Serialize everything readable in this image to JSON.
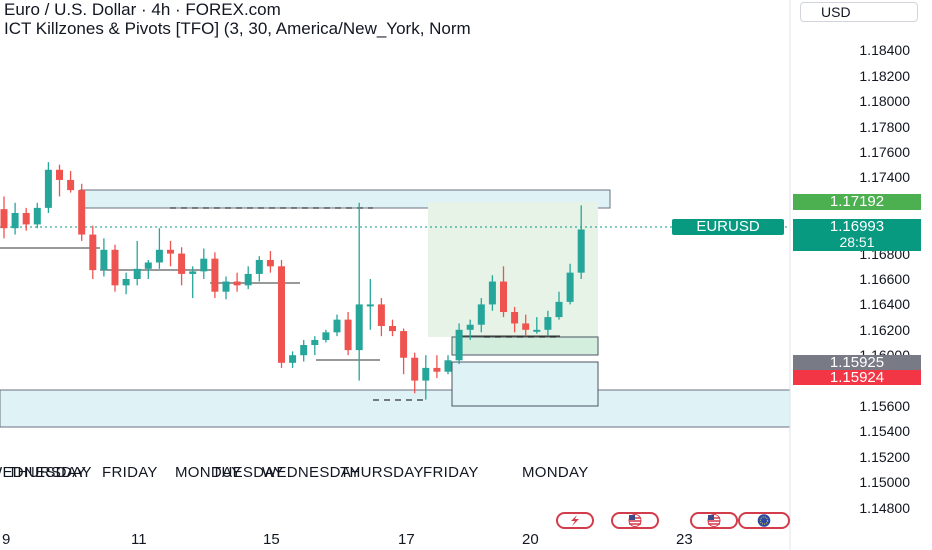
{
  "header": {
    "symbol_title": "Euro / U.S. Dollar · 4h · FOREX.com",
    "indicator": "ICT Killzones & Pivots [TFO] (3, 30, America/New_York, Norm"
  },
  "price_axis": {
    "currency": "USD",
    "ticks": [
      "1.18400",
      "1.18200",
      "1.18000",
      "1.17800",
      "1.17600",
      "1.17400",
      "1.16800",
      "1.16600",
      "1.16400",
      "1.16200",
      "1.16000",
      "1.15600",
      "1.15400",
      "1.15200",
      "1.15000",
      "1.14800"
    ]
  },
  "time_axis": {
    "ticks": [
      "9",
      "11",
      "15",
      "17",
      "20",
      "23"
    ]
  },
  "labels": {
    "high_price": "1.17192",
    "symbol_tag": "EURUSD",
    "last_price": "1.16993",
    "countdown": "28:51",
    "level_a": "1.15925",
    "level_b": "1.15924"
  },
  "colors": {
    "up": "#26a69a",
    "down": "#ef5350",
    "zone_fill": "#dff3f6",
    "range_fill": "#e6f3e6",
    "high_label": "#4caf50",
    "price_label": "#089981",
    "level_a": "#787b86",
    "level_b": "#f23645"
  },
  "day_labels": [
    "WEDNESDAY",
    "THURSDAY",
    "FRIDAY",
    "MONDAY",
    "TUESDAY",
    "WEDNESDAY",
    "THURSDAY",
    "FRIDAY",
    "MONDAY"
  ],
  "events": [
    "flash-event-icon",
    "us-flag-event-icon",
    "us-flag-event-icon",
    "eu-flag-event-icon"
  ],
  "chart_data": {
    "type": "candlestick",
    "symbol": "EURUSD",
    "timeframe": "4h",
    "ylim": [
      1.147,
      1.186
    ],
    "candles": [
      {
        "o": 1.1715,
        "h": 1.1725,
        "l": 1.1692,
        "c": 1.17
      },
      {
        "o": 1.17,
        "h": 1.172,
        "l": 1.1695,
        "c": 1.1712
      },
      {
        "o": 1.1712,
        "h": 1.1716,
        "l": 1.1698,
        "c": 1.1703
      },
      {
        "o": 1.1703,
        "h": 1.172,
        "l": 1.17,
        "c": 1.1716
      },
      {
        "o": 1.1716,
        "h": 1.1752,
        "l": 1.1712,
        "c": 1.1746
      },
      {
        "o": 1.1746,
        "h": 1.175,
        "l": 1.1725,
        "c": 1.1738
      },
      {
        "o": 1.1738,
        "h": 1.1745,
        "l": 1.1728,
        "c": 1.173
      },
      {
        "o": 1.173,
        "h": 1.1735,
        "l": 1.169,
        "c": 1.1695
      },
      {
        "o": 1.1695,
        "h": 1.1702,
        "l": 1.166,
        "c": 1.1667
      },
      {
        "o": 1.1667,
        "h": 1.1692,
        "l": 1.1662,
        "c": 1.1683
      },
      {
        "o": 1.1683,
        "h": 1.1687,
        "l": 1.165,
        "c": 1.1655
      },
      {
        "o": 1.1655,
        "h": 1.1665,
        "l": 1.1648,
        "c": 1.166
      },
      {
        "o": 1.166,
        "h": 1.169,
        "l": 1.1655,
        "c": 1.1668
      },
      {
        "o": 1.1668,
        "h": 1.1675,
        "l": 1.166,
        "c": 1.1673
      },
      {
        "o": 1.1673,
        "h": 1.17,
        "l": 1.1668,
        "c": 1.1683
      },
      {
        "o": 1.1683,
        "h": 1.169,
        "l": 1.167,
        "c": 1.168
      },
      {
        "o": 1.168,
        "h": 1.1685,
        "l": 1.1655,
        "c": 1.1664
      },
      {
        "o": 1.1664,
        "h": 1.167,
        "l": 1.1645,
        "c": 1.1666
      },
      {
        "o": 1.1666,
        "h": 1.1684,
        "l": 1.166,
        "c": 1.1676
      },
      {
        "o": 1.1676,
        "h": 1.1681,
        "l": 1.1645,
        "c": 1.165
      },
      {
        "o": 1.165,
        "h": 1.1662,
        "l": 1.1644,
        "c": 1.1658
      },
      {
        "o": 1.1658,
        "h": 1.1665,
        "l": 1.165,
        "c": 1.1655
      },
      {
        "o": 1.1655,
        "h": 1.167,
        "l": 1.1652,
        "c": 1.1664
      },
      {
        "o": 1.1664,
        "h": 1.1678,
        "l": 1.1658,
        "c": 1.1675
      },
      {
        "o": 1.1675,
        "h": 1.1682,
        "l": 1.1665,
        "c": 1.167
      },
      {
        "o": 1.167,
        "h": 1.1675,
        "l": 1.159,
        "c": 1.1594
      },
      {
        "o": 1.1594,
        "h": 1.1603,
        "l": 1.159,
        "c": 1.16
      },
      {
        "o": 1.16,
        "h": 1.1612,
        "l": 1.1595,
        "c": 1.1608
      },
      {
        "o": 1.1608,
        "h": 1.1615,
        "l": 1.16,
        "c": 1.1612
      },
      {
        "o": 1.1612,
        "h": 1.162,
        "l": 1.161,
        "c": 1.1618
      },
      {
        "o": 1.1618,
        "h": 1.1632,
        "l": 1.1615,
        "c": 1.1628
      },
      {
        "o": 1.1628,
        "h": 1.1634,
        "l": 1.16,
        "c": 1.1604
      },
      {
        "o": 1.1604,
        "h": 1.172,
        "l": 1.158,
        "c": 1.164
      },
      {
        "o": 1.164,
        "h": 1.166,
        "l": 1.162,
        "c": 1.164
      },
      {
        "o": 1.164,
        "h": 1.1645,
        "l": 1.1615,
        "c": 1.1623
      },
      {
        "o": 1.1623,
        "h": 1.1628,
        "l": 1.1615,
        "c": 1.1619
      },
      {
        "o": 1.1619,
        "h": 1.1621,
        "l": 1.1585,
        "c": 1.1598
      },
      {
        "o": 1.1598,
        "h": 1.1602,
        "l": 1.157,
        "c": 1.158
      },
      {
        "o": 1.158,
        "h": 1.16,
        "l": 1.1565,
        "c": 1.159
      },
      {
        "o": 1.159,
        "h": 1.16,
        "l": 1.1582,
        "c": 1.1587
      },
      {
        "o": 1.1587,
        "h": 1.16,
        "l": 1.1585,
        "c": 1.1596
      },
      {
        "o": 1.1596,
        "h": 1.1625,
        "l": 1.1593,
        "c": 1.162
      },
      {
        "o": 1.162,
        "h": 1.1628,
        "l": 1.1612,
        "c": 1.1624
      },
      {
        "o": 1.1624,
        "h": 1.1645,
        "l": 1.1618,
        "c": 1.164
      },
      {
        "o": 1.164,
        "h": 1.1663,
        "l": 1.1635,
        "c": 1.1658
      },
      {
        "o": 1.1658,
        "h": 1.167,
        "l": 1.163,
        "c": 1.1634
      },
      {
        "o": 1.1634,
        "h": 1.1638,
        "l": 1.1618,
        "c": 1.1625
      },
      {
        "o": 1.1625,
        "h": 1.1632,
        "l": 1.1615,
        "c": 1.162
      },
      {
        "o": 1.162,
        "h": 1.163,
        "l": 1.1617,
        "c": 1.162
      },
      {
        "o": 1.162,
        "h": 1.1635,
        "l": 1.1615,
        "c": 1.163
      },
      {
        "o": 1.163,
        "h": 1.165,
        "l": 1.1628,
        "c": 1.1642
      },
      {
        "o": 1.1642,
        "h": 1.1672,
        "l": 1.164,
        "c": 1.1665
      },
      {
        "o": 1.1665,
        "h": 1.1718,
        "l": 1.166,
        "c": 1.1699
      }
    ]
  }
}
